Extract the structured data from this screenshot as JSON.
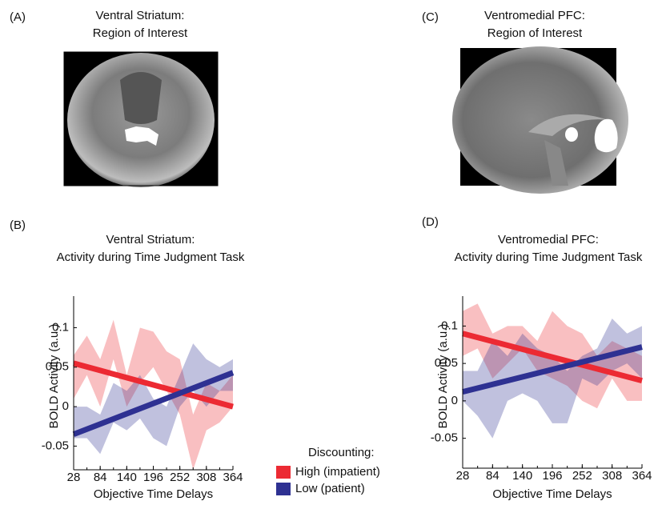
{
  "image_panels": [
    {
      "label": "(A)",
      "title": [
        "Ventral Striatum:",
        "Region of Interest"
      ]
    },
    {
      "label": "(C)",
      "title": [
        "Ventromedial PFC:",
        "Region of Interest"
      ]
    }
  ],
  "chart_data": [
    {
      "type": "line",
      "label": "(B)",
      "title": [
        "Ventral Striatum:",
        "Activity during Time Judgment Task"
      ],
      "x_label": "Objective Time Delays",
      "y_label": "BOLD Activity (a.u.)",
      "legend_title": "Discounting:",
      "x": [
        28,
        56,
        84,
        112,
        140,
        168,
        196,
        224,
        252,
        280,
        308,
        336,
        364
      ],
      "xlim": [
        28,
        364
      ],
      "xticks": [
        28,
        84,
        140,
        196,
        252,
        308,
        364
      ],
      "ylim": [
        -0.08,
        0.14
      ],
      "yticks": [
        -0.05,
        0,
        0.05,
        0.1
      ],
      "series": [
        {
          "name": "High (impatient)",
          "color": "#ec2a33",
          "upper": [
            0.065,
            0.09,
            0.06,
            0.11,
            0.04,
            0.1,
            0.095,
            0.07,
            0.06,
            -0.01,
            0.03,
            0.02,
            0.04
          ],
          "lower": [
            0.01,
            0.04,
            0.0,
            0.06,
            0.0,
            0.03,
            0.05,
            0.02,
            -0.01,
            -0.08,
            -0.03,
            -0.02,
            0.0
          ],
          "fit": [
            0.055,
            0.0
          ]
        },
        {
          "name": "Low (patient)",
          "color": "#2e3192",
          "upper": [
            0.0,
            0.0,
            -0.01,
            0.03,
            0.02,
            0.04,
            0.01,
            0.0,
            0.04,
            0.08,
            0.06,
            0.05,
            0.06
          ],
          "lower": [
            -0.04,
            -0.04,
            -0.06,
            -0.02,
            -0.03,
            -0.015,
            -0.04,
            -0.05,
            0.0,
            0.02,
            0.0,
            0.02,
            0.02
          ],
          "fit": [
            -0.035,
            0.043
          ]
        }
      ]
    },
    {
      "type": "line",
      "label": "(D)",
      "title": [
        "Ventromedial PFC:",
        "Activity during Time Judgment Task"
      ],
      "x_label": "Objective Time Delays",
      "y_label": "BOLD Activity (a.u.)",
      "x": [
        28,
        56,
        84,
        112,
        140,
        168,
        196,
        224,
        252,
        280,
        308,
        336,
        364
      ],
      "xlim": [
        28,
        364
      ],
      "xticks": [
        28,
        84,
        140,
        196,
        252,
        308,
        364
      ],
      "ylim": [
        -0.09,
        0.14
      ],
      "yticks": [
        -0.05,
        0,
        0.05,
        0.1
      ],
      "series": [
        {
          "color": "#ec2a33",
          "upper": [
            0.12,
            0.13,
            0.09,
            0.1,
            0.1,
            0.08,
            0.12,
            0.1,
            0.09,
            0.06,
            0.08,
            0.07,
            0.06
          ],
          "lower": [
            0.06,
            0.07,
            0.03,
            0.05,
            0.07,
            0.04,
            0.03,
            0.02,
            0.0,
            -0.01,
            0.03,
            0.0,
            0.0
          ],
          "fit": [
            0.09,
            0.027
          ]
        },
        {
          "color": "#2e3192",
          "upper": [
            0.04,
            0.04,
            0.08,
            0.06,
            0.09,
            0.07,
            0.06,
            0.04,
            0.06,
            0.07,
            0.11,
            0.09,
            0.1
          ],
          "lower": [
            0.0,
            -0.02,
            -0.05,
            0.0,
            0.01,
            0.0,
            -0.03,
            -0.03,
            0.03,
            0.02,
            0.04,
            0.05,
            0.03
          ],
          "fit": [
            0.012,
            0.072
          ]
        }
      ]
    }
  ]
}
